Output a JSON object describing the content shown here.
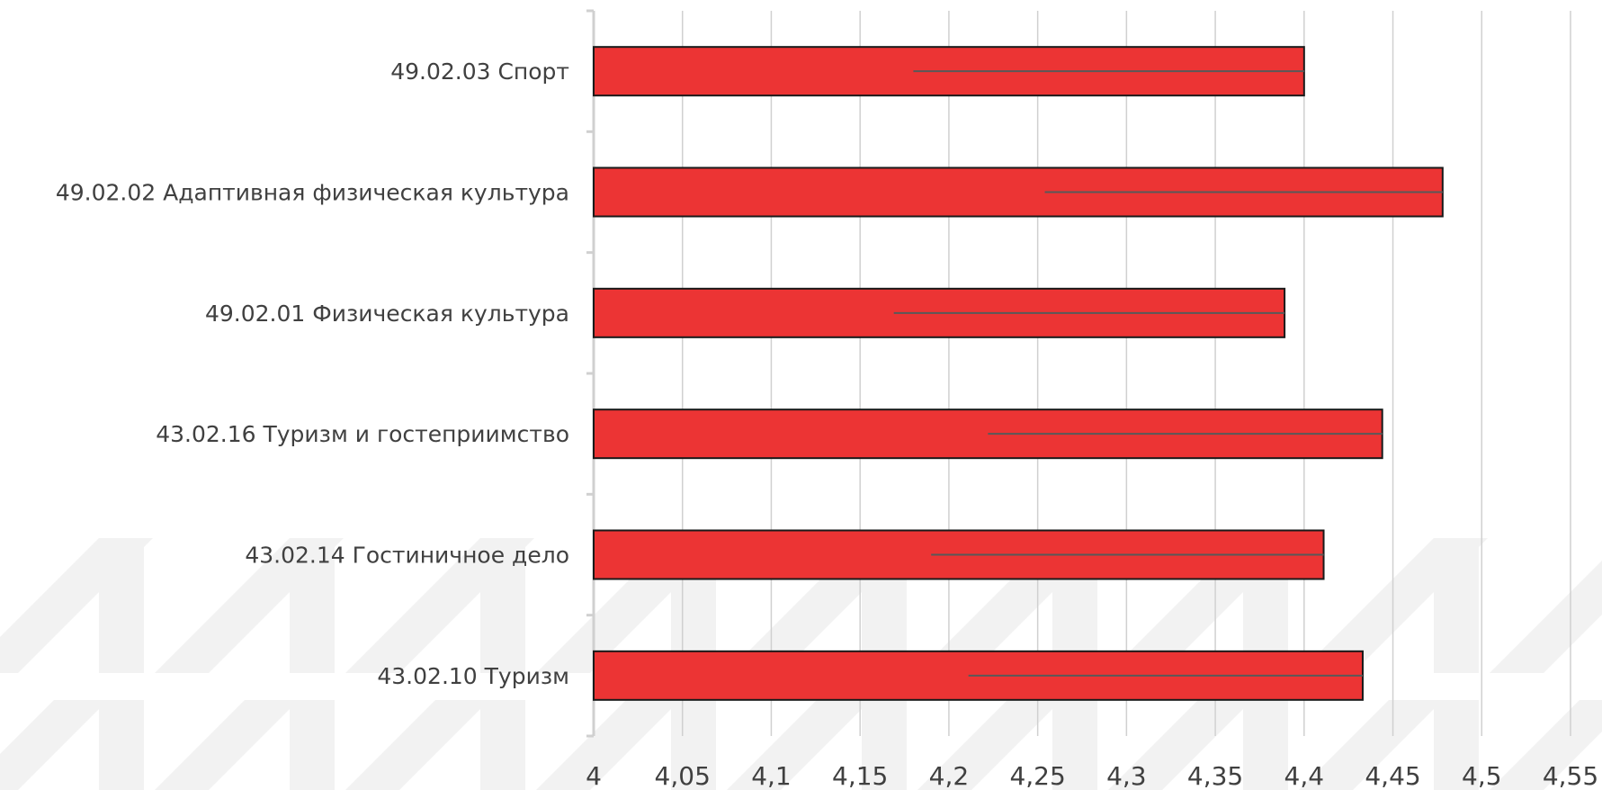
{
  "chart_data": {
    "type": "bar",
    "orientation": "horizontal",
    "title": "",
    "xlabel": "",
    "ylabel": "",
    "xlim": [
      4,
      4.55
    ],
    "grid": true,
    "legend": "none",
    "categories": [
      "49.02.03 Спорт",
      "49.02.02 Адаптивная физическая культура",
      "49.02.01 Физическая культура",
      "43.02.16 Туризм и гостеприимство",
      "43.02.14 Гостиничное дело",
      "43.02.10 Туризм"
    ],
    "values": [
      4.4,
      4.478,
      4.389,
      4.444,
      4.411,
      4.433
    ],
    "error_bars_lower": [
      4.18,
      4.254,
      4.169,
      4.222,
      4.19,
      4.211
    ],
    "x_ticks": [
      "4",
      "4,05",
      "4,1",
      "4,15",
      "4,2",
      "4,25",
      "4,3",
      "4,35",
      "4,4",
      "4,45",
      "4,5",
      "4,55"
    ],
    "colors": {
      "bar": "#EC3434",
      "bar_border": "#1a1a1a",
      "error_bar": "#595959",
      "gridline": "#D0D0D0",
      "axis": "#D0D0D0",
      "text": "#404040",
      "watermark": "#F2F2F2"
    }
  }
}
